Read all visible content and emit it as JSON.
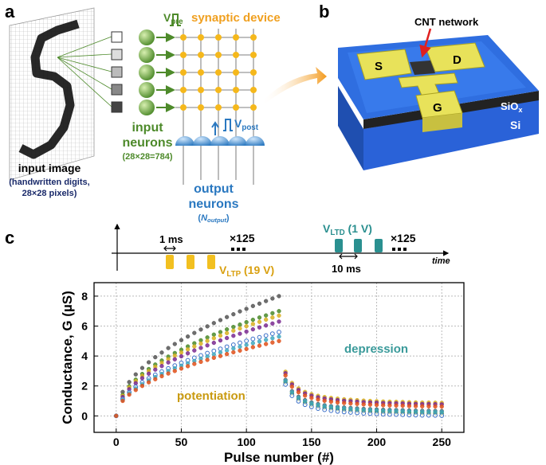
{
  "panel_labels": [
    "a",
    "b",
    "c"
  ],
  "panel_a": {
    "v_pre": {
      "main": "V",
      "sub": "pre"
    },
    "synaptic_device": "synaptic device",
    "input_neurons": [
      "input",
      "neurons"
    ],
    "input_neurons_count": "(28×28=784)",
    "v_post": {
      "main": "V",
      "sub": "post"
    },
    "output_neurons": [
      "output",
      "neurons"
    ],
    "n_output": {
      "open": "(",
      "main": "N",
      "sub": "output",
      "close": ")"
    },
    "input_image": "input image",
    "input_image_note": [
      "(handwritten digits,",
      "28×28 pixels)"
    ]
  },
  "panel_b": {
    "cnt": "CNT network",
    "source": "S",
    "drain": "D",
    "gate": "G",
    "oxide": {
      "main": "SiO",
      "sub": "x"
    },
    "substrate": "Si"
  },
  "pulse_scheme": {
    "ltp_width": "1 ms",
    "ltp_repeat": "×125",
    "v_ltp": {
      "main": "V",
      "sub": "LTP",
      "end": " (19 V)"
    },
    "v_ltd": {
      "main": "V",
      "sub": "LTD",
      "end": " (1 V)"
    },
    "ltd_period": "10 ms",
    "ltd_repeat": "×125",
    "time": "time"
  },
  "chart_data": {
    "type": "scatter",
    "xlabel": "Pulse number (#)",
    "ylabel": "Conductance, G (µS)",
    "annotations": [
      "depression",
      "potentiation"
    ],
    "xlim": [
      -17,
      267
    ],
    "ylim": [
      -1.1,
      8.9
    ],
    "xticks": [
      0,
      50,
      100,
      150,
      200,
      250
    ],
    "yticks": [
      0,
      2,
      4,
      6,
      8
    ],
    "grid": true,
    "x": [
      0,
      5,
      10,
      15,
      20,
      25,
      30,
      35,
      40,
      45,
      50,
      55,
      60,
      65,
      70,
      75,
      80,
      85,
      90,
      95,
      100,
      105,
      110,
      115,
      120,
      125,
      130,
      135,
      140,
      145,
      150,
      155,
      160,
      165,
      170,
      175,
      180,
      185,
      190,
      195,
      200,
      205,
      210,
      215,
      220,
      225,
      230,
      235,
      240,
      245,
      250
    ],
    "series": [
      {
        "color": "#555555",
        "marker": "circle",
        "values": [
          0,
          1.6,
          2.26,
          2.77,
          3.2,
          3.58,
          3.92,
          4.23,
          4.53,
          4.8,
          5.06,
          5.3,
          5.54,
          5.77,
          5.98,
          6.2,
          6.4,
          6.6,
          6.79,
          6.98,
          7.15,
          7.34,
          7.5,
          7.67,
          7.84,
          8.0,
          2.4,
          1.65,
          1.28,
          1.05,
          0.9,
          0.79,
          0.71,
          0.65,
          0.6,
          0.56,
          0.53,
          0.5,
          0.47,
          0.45,
          0.43,
          0.41,
          0.4,
          0.39,
          0.38,
          0.36,
          0.35,
          0.34,
          0.34,
          0.33,
          0.32
        ]
      },
      {
        "color": "#4a8a2a",
        "marker": "circle",
        "values": [
          0,
          1.4,
          1.98,
          2.42,
          2.8,
          3.13,
          3.43,
          3.7,
          3.96,
          4.2,
          4.42,
          4.64,
          4.85,
          5.05,
          5.24,
          5.43,
          5.6,
          5.78,
          5.94,
          6.1,
          6.26,
          6.42,
          6.57,
          6.71,
          6.86,
          7.0,
          2.25,
          1.5,
          1.13,
          0.9,
          0.75,
          0.64,
          0.56,
          0.5,
          0.45,
          0.41,
          0.38,
          0.35,
          0.32,
          0.3,
          0.28,
          0.26,
          0.25,
          0.24,
          0.23,
          0.21,
          0.2,
          0.19,
          0.19,
          0.18,
          0.17
        ]
      },
      {
        "color": "#d8b020",
        "marker": "circle",
        "values": [
          0,
          1.34,
          1.9,
          2.32,
          2.68,
          2.99,
          3.28,
          3.54,
          3.79,
          4.02,
          4.23,
          4.44,
          4.64,
          4.83,
          5.01,
          5.19,
          5.36,
          5.53,
          5.69,
          5.84,
          5.99,
          6.14,
          6.28,
          6.43,
          6.57,
          6.7,
          2.95,
          2.2,
          1.83,
          1.6,
          1.45,
          1.34,
          1.26,
          1.2,
          1.15,
          1.11,
          1.08,
          1.05,
          1.02,
          1.0,
          0.98,
          0.96,
          0.95,
          0.94,
          0.93,
          0.91,
          0.9,
          0.89,
          0.89,
          0.88,
          0.87
        ]
      },
      {
        "color": "#7a2a90",
        "marker": "circle",
        "values": [
          0,
          1.26,
          1.78,
          2.18,
          2.52,
          2.82,
          3.09,
          3.33,
          3.57,
          3.78,
          3.98,
          4.18,
          4.37,
          4.54,
          4.71,
          4.88,
          5.04,
          5.2,
          5.35,
          5.49,
          5.63,
          5.78,
          5.91,
          6.04,
          6.17,
          6.3,
          2.85,
          2.1,
          1.73,
          1.5,
          1.35,
          1.24,
          1.16,
          1.1,
          1.05,
          1.01,
          0.98,
          0.95,
          0.92,
          0.9,
          0.88,
          0.86,
          0.85,
          0.84,
          0.83,
          0.81,
          0.8,
          0.79,
          0.79,
          0.78,
          0.77
        ]
      },
      {
        "color": "#3a6ec8",
        "marker": "open-circle",
        "values": [
          0,
          1.12,
          1.58,
          1.94,
          2.24,
          2.5,
          2.74,
          2.96,
          3.17,
          3.36,
          3.54,
          3.71,
          3.88,
          4.04,
          4.19,
          4.34,
          4.48,
          4.62,
          4.75,
          4.88,
          5.01,
          5.14,
          5.25,
          5.37,
          5.49,
          5.6,
          2.1,
          1.35,
          0.98,
          0.75,
          0.6,
          0.49,
          0.41,
          0.35,
          0.3,
          0.26,
          0.23,
          0.2,
          0.17,
          0.15,
          0.13,
          0.11,
          0.1,
          0.09,
          0.08,
          0.06,
          0.05,
          0.04,
          0.04,
          0.03,
          0.02
        ]
      },
      {
        "color": "#40a8c0",
        "marker": "circle",
        "values": [
          0,
          1.06,
          1.5,
          1.83,
          2.12,
          2.37,
          2.6,
          2.8,
          3.0,
          3.18,
          3.35,
          3.51,
          3.67,
          3.82,
          3.96,
          4.11,
          4.24,
          4.37,
          4.5,
          4.62,
          4.74,
          4.86,
          4.97,
          5.08,
          5.19,
          5.3,
          2.35,
          1.6,
          1.23,
          1.0,
          0.85,
          0.74,
          0.66,
          0.6,
          0.55,
          0.51,
          0.48,
          0.45,
          0.42,
          0.4,
          0.38,
          0.36,
          0.35,
          0.34,
          0.33,
          0.31,
          0.3,
          0.29,
          0.29,
          0.28,
          0.27
        ]
      },
      {
        "color": "#e0501a",
        "marker": "circle",
        "values": [
          0,
          1.0,
          1.42,
          1.73,
          2.0,
          2.24,
          2.45,
          2.65,
          2.83,
          3.0,
          3.16,
          3.32,
          3.47,
          3.61,
          3.74,
          3.88,
          4.0,
          4.13,
          4.25,
          4.36,
          4.47,
          4.59,
          4.69,
          4.8,
          4.9,
          5.0,
          2.7,
          1.95,
          1.58,
          1.35,
          1.2,
          1.09,
          1.01,
          0.95,
          0.9,
          0.86,
          0.83,
          0.8,
          0.77,
          0.75,
          0.73,
          0.71,
          0.7,
          0.69,
          0.68,
          0.66,
          0.65,
          0.64,
          0.64,
          0.63,
          0.62
        ]
      }
    ]
  }
}
